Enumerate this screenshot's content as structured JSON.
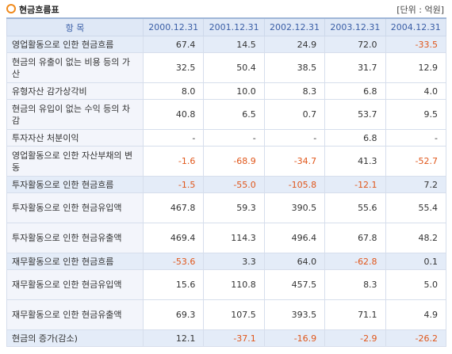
{
  "header": {
    "title": "현금흐름표",
    "unit": "[단위 : 억원]"
  },
  "table": {
    "columns": [
      "항    목",
      "2000.12.31",
      "2001.12.31",
      "2002.12.31",
      "2003.12.31",
      "2004.12.31"
    ],
    "rows": [
      {
        "label": "영업활동으로 인한 현금흐름",
        "values": [
          "67.4",
          "14.5",
          "24.9",
          "72.0",
          "-33.5"
        ]
      },
      {
        "label": "현금의 유출이 없는 비용 등의 가산",
        "values": [
          "32.5",
          "50.4",
          "38.5",
          "31.7",
          "12.9"
        ]
      },
      {
        "label": "유형자산 감가상각비",
        "values": [
          "8.0",
          "10.0",
          "8.3",
          "6.8",
          "4.0"
        ]
      },
      {
        "label": "현금의 유입이 없는 수익 등의 차감",
        "values": [
          "40.8",
          "6.5",
          "0.7",
          "53.7",
          "9.5"
        ]
      },
      {
        "label": "투자자산 처분이익",
        "values": [
          "-",
          "-",
          "-",
          "6.8",
          "-"
        ]
      },
      {
        "label": "영업활동으로 인한 자산부채의 변동",
        "values": [
          "-1.6",
          "-68.9",
          "-34.7",
          "41.3",
          "-52.7"
        ]
      },
      {
        "label": "투자활동으로 인한 현금흐름",
        "values": [
          "-1.5",
          "-55.0",
          "-105.8",
          "-12.1",
          "7.2"
        ]
      },
      {
        "label": "투자활동으로 인한 현금유입액",
        "values": [
          "467.8",
          "59.3",
          "390.5",
          "55.6",
          "55.4"
        ]
      },
      {
        "label": "투자활동으로 인한 현금유출액",
        "values": [
          "469.4",
          "114.3",
          "496.4",
          "67.8",
          "48.2"
        ]
      },
      {
        "label": "재무활동으로 인한 현금흐름",
        "values": [
          "-53.6",
          "3.3",
          "64.0",
          "-62.8",
          "0.1"
        ]
      },
      {
        "label": "재무활동으로 인한 현금유입액",
        "values": [
          "15.6",
          "110.8",
          "457.5",
          "8.3",
          "5.0"
        ]
      },
      {
        "label": "재무활동으로 인한 현금유출액",
        "values": [
          "69.3",
          "107.5",
          "393.5",
          "71.1",
          "4.9"
        ]
      },
      {
        "label": "현금의 증가(감소)",
        "values": [
          "12.1",
          "-37.1",
          "-16.9",
          "-2.9",
          "-26.2"
        ]
      }
    ]
  }
}
